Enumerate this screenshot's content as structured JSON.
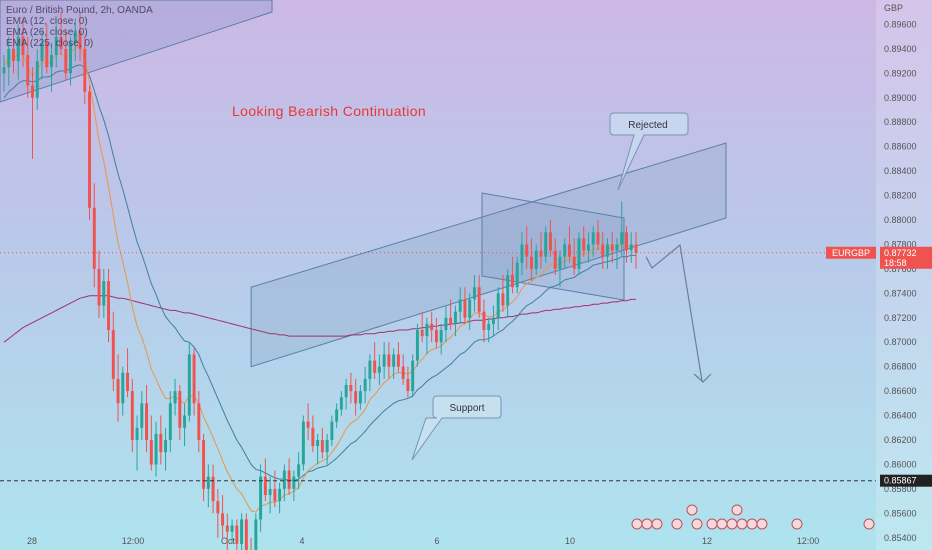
{
  "legend": {
    "title": "Euro / British Pound, 2h, OANDA",
    "lines": [
      "EMA (12, close, 0)",
      "EMA (26, close, 0)",
      "EMA (225, close, 0)"
    ]
  },
  "annotations": {
    "headline": "Looking Bearish Continuation",
    "rejected": "Rejected",
    "support": "Support"
  },
  "price_tag": {
    "symbol": "EURGBP",
    "price": "0.87732",
    "countdown": "18:58",
    "support_price": "0.85867"
  },
  "colors": {
    "up": "#26a69a",
    "down": "#ef5350",
    "headline": "#e53935",
    "channel": "#5b7fa6"
  },
  "chart_data": {
    "type": "candlestick",
    "currency": "GBP",
    "y_ticks": [
      "0.89600",
      "0.89400",
      "0.89200",
      "0.89000",
      "0.88800",
      "0.88600",
      "0.88400",
      "0.88200",
      "0.88000",
      "0.87800",
      "0.87600",
      "0.87400",
      "0.87200",
      "0.87000",
      "0.86800",
      "0.86600",
      "0.86400",
      "0.86200",
      "0.86000",
      "0.85800",
      "0.85600",
      "0.85400"
    ],
    "x_ticks": [
      "28",
      "12:00",
      "Oct",
      "4",
      "6",
      "10",
      "12",
      "12:00"
    ],
    "ylim": [
      0.853,
      0.898
    ],
    "last_price": 0.87732,
    "support_level": 0.85867,
    "candles": [
      [
        0.892,
        0.8935,
        0.8905,
        0.8925
      ],
      [
        0.8925,
        0.895,
        0.891,
        0.894
      ],
      [
        0.894,
        0.8955,
        0.892,
        0.893
      ],
      [
        0.893,
        0.896,
        0.8915,
        0.895
      ],
      [
        0.895,
        0.8965,
        0.8925,
        0.8935
      ],
      [
        0.8935,
        0.895,
        0.89,
        0.891
      ],
      [
        0.891,
        0.8925,
        0.885,
        0.89
      ],
      [
        0.89,
        0.894,
        0.889,
        0.893
      ],
      [
        0.893,
        0.8955,
        0.8915,
        0.8945
      ],
      [
        0.8945,
        0.896,
        0.892,
        0.8925
      ],
      [
        0.8925,
        0.8945,
        0.8905,
        0.8935
      ],
      [
        0.8935,
        0.896,
        0.8925,
        0.895
      ],
      [
        0.895,
        0.897,
        0.8935,
        0.894
      ],
      [
        0.894,
        0.8955,
        0.8915,
        0.892
      ],
      [
        0.892,
        0.895,
        0.891,
        0.8945
      ],
      [
        0.8945,
        0.8965,
        0.893,
        0.8955
      ],
      [
        0.8955,
        0.897,
        0.893,
        0.894
      ],
      [
        0.894,
        0.895,
        0.8895,
        0.8905
      ],
      [
        0.8905,
        0.891,
        0.88,
        0.881
      ],
      [
        0.881,
        0.883,
        0.8745,
        0.876
      ],
      [
        0.876,
        0.8775,
        0.872,
        0.873
      ],
      [
        0.873,
        0.876,
        0.872,
        0.875
      ],
      [
        0.875,
        0.876,
        0.87,
        0.871
      ],
      [
        0.871,
        0.8725,
        0.866,
        0.867
      ],
      [
        0.867,
        0.869,
        0.8635,
        0.865
      ],
      [
        0.865,
        0.868,
        0.864,
        0.8675
      ],
      [
        0.8675,
        0.8695,
        0.8655,
        0.866
      ],
      [
        0.866,
        0.867,
        0.861,
        0.862
      ],
      [
        0.862,
        0.864,
        0.8595,
        0.863
      ],
      [
        0.863,
        0.866,
        0.862,
        0.865
      ],
      [
        0.865,
        0.8665,
        0.861,
        0.862
      ],
      [
        0.862,
        0.864,
        0.8595,
        0.86
      ],
      [
        0.86,
        0.8635,
        0.859,
        0.8625
      ],
      [
        0.8625,
        0.864,
        0.86,
        0.861
      ],
      [
        0.861,
        0.863,
        0.8595,
        0.862
      ],
      [
        0.862,
        0.866,
        0.861,
        0.865
      ],
      [
        0.865,
        0.867,
        0.864,
        0.866
      ],
      [
        0.866,
        0.8665,
        0.862,
        0.863
      ],
      [
        0.863,
        0.865,
        0.8615,
        0.864
      ],
      [
        0.864,
        0.87,
        0.8635,
        0.869
      ],
      [
        0.869,
        0.8695,
        0.864,
        0.865
      ],
      [
        0.865,
        0.866,
        0.861,
        0.862
      ],
      [
        0.862,
        0.8625,
        0.857,
        0.858
      ],
      [
        0.858,
        0.86,
        0.8565,
        0.859
      ],
      [
        0.859,
        0.86,
        0.856,
        0.857
      ],
      [
        0.857,
        0.858,
        0.854,
        0.856
      ],
      [
        0.856,
        0.8575,
        0.854,
        0.855
      ],
      [
        0.855,
        0.856,
        0.853,
        0.8545
      ],
      [
        0.8545,
        0.8555,
        0.8535,
        0.855
      ],
      [
        0.855,
        0.8555,
        0.8525,
        0.8535
      ],
      [
        0.8535,
        0.856,
        0.853,
        0.8555
      ],
      [
        0.8555,
        0.856,
        0.852,
        0.853
      ],
      [
        0.853,
        0.854,
        0.8515,
        0.8525
      ],
      [
        0.8525,
        0.856,
        0.8515,
        0.8555
      ],
      [
        0.8555,
        0.86,
        0.8545,
        0.859
      ],
      [
        0.859,
        0.8605,
        0.857,
        0.8575
      ],
      [
        0.8575,
        0.859,
        0.856,
        0.858
      ],
      [
        0.858,
        0.8595,
        0.8565,
        0.857
      ],
      [
        0.857,
        0.8585,
        0.856,
        0.858
      ],
      [
        0.858,
        0.86,
        0.857,
        0.8595
      ],
      [
        0.8595,
        0.8605,
        0.8575,
        0.858
      ],
      [
        0.858,
        0.8595,
        0.857,
        0.859
      ],
      [
        0.859,
        0.861,
        0.858,
        0.86
      ],
      [
        0.86,
        0.864,
        0.8595,
        0.8635
      ],
      [
        0.8635,
        0.865,
        0.862,
        0.863
      ],
      [
        0.863,
        0.864,
        0.861,
        0.8615
      ],
      [
        0.8615,
        0.8625,
        0.86,
        0.862
      ],
      [
        0.862,
        0.863,
        0.8605,
        0.861
      ],
      [
        0.861,
        0.8625,
        0.86,
        0.862
      ],
      [
        0.862,
        0.864,
        0.8615,
        0.8635
      ],
      [
        0.8635,
        0.865,
        0.863,
        0.8645
      ],
      [
        0.8645,
        0.866,
        0.864,
        0.8655
      ],
      [
        0.8655,
        0.867,
        0.8645,
        0.8665
      ],
      [
        0.8665,
        0.8675,
        0.865,
        0.866
      ],
      [
        0.866,
        0.867,
        0.864,
        0.865
      ],
      [
        0.865,
        0.8665,
        0.8645,
        0.866
      ],
      [
        0.866,
        0.868,
        0.865,
        0.867
      ],
      [
        0.867,
        0.869,
        0.866,
        0.8685
      ],
      [
        0.8685,
        0.87,
        0.867,
        0.8675
      ],
      [
        0.8675,
        0.869,
        0.8665,
        0.868
      ],
      [
        0.868,
        0.87,
        0.867,
        0.869
      ],
      [
        0.869,
        0.87,
        0.867,
        0.868
      ],
      [
        0.868,
        0.8695,
        0.867,
        0.869
      ],
      [
        0.869,
        0.87,
        0.8675,
        0.868
      ],
      [
        0.868,
        0.869,
        0.8665,
        0.867
      ],
      [
        0.867,
        0.868,
        0.8655,
        0.866
      ],
      [
        0.866,
        0.869,
        0.8655,
        0.8685
      ],
      [
        0.8685,
        0.8715,
        0.868,
        0.871
      ],
      [
        0.871,
        0.8725,
        0.87,
        0.8705
      ],
      [
        0.8705,
        0.872,
        0.869,
        0.8715
      ],
      [
        0.8715,
        0.8725,
        0.87,
        0.871
      ],
      [
        0.871,
        0.872,
        0.8695,
        0.87
      ],
      [
        0.87,
        0.8715,
        0.869,
        0.871
      ],
      [
        0.871,
        0.873,
        0.87,
        0.872
      ],
      [
        0.872,
        0.8735,
        0.871,
        0.8715
      ],
      [
        0.8715,
        0.873,
        0.8705,
        0.8725
      ],
      [
        0.8725,
        0.8745,
        0.8715,
        0.8735
      ],
      [
        0.8735,
        0.8745,
        0.8715,
        0.872
      ],
      [
        0.872,
        0.874,
        0.871,
        0.8735
      ],
      [
        0.8735,
        0.8755,
        0.8725,
        0.8745
      ],
      [
        0.8745,
        0.8755,
        0.872,
        0.8725
      ],
      [
        0.8725,
        0.8735,
        0.87,
        0.871
      ],
      [
        0.871,
        0.872,
        0.87,
        0.8715
      ],
      [
        0.8715,
        0.873,
        0.8705,
        0.872
      ],
      [
        0.872,
        0.8745,
        0.871,
        0.874
      ],
      [
        0.874,
        0.8755,
        0.8725,
        0.873
      ],
      [
        0.873,
        0.876,
        0.872,
        0.8755
      ],
      [
        0.8755,
        0.877,
        0.874,
        0.8745
      ],
      [
        0.8745,
        0.877,
        0.874,
        0.8765
      ],
      [
        0.8765,
        0.879,
        0.8755,
        0.878
      ],
      [
        0.878,
        0.8795,
        0.876,
        0.877
      ],
      [
        0.877,
        0.8785,
        0.875,
        0.876
      ],
      [
        0.876,
        0.878,
        0.8755,
        0.8775
      ],
      [
        0.8775,
        0.879,
        0.876,
        0.877
      ],
      [
        0.877,
        0.8795,
        0.8765,
        0.879
      ],
      [
        0.879,
        0.88,
        0.877,
        0.8775
      ],
      [
        0.8775,
        0.8785,
        0.8755,
        0.876
      ],
      [
        0.876,
        0.8775,
        0.8745,
        0.877
      ],
      [
        0.877,
        0.8785,
        0.876,
        0.878
      ],
      [
        0.878,
        0.8795,
        0.8765,
        0.877
      ],
      [
        0.877,
        0.8785,
        0.8755,
        0.876
      ],
      [
        0.876,
        0.879,
        0.8755,
        0.8785
      ],
      [
        0.8785,
        0.8795,
        0.877,
        0.8775
      ],
      [
        0.8775,
        0.879,
        0.8765,
        0.878
      ],
      [
        0.878,
        0.8795,
        0.877,
        0.879
      ],
      [
        0.879,
        0.88,
        0.8775,
        0.878
      ],
      [
        0.878,
        0.879,
        0.876,
        0.877
      ],
      [
        0.877,
        0.8785,
        0.876,
        0.878
      ],
      [
        0.878,
        0.879,
        0.8765,
        0.8775
      ],
      [
        0.8775,
        0.8785,
        0.876,
        0.878
      ],
      [
        0.878,
        0.8815,
        0.877,
        0.879
      ],
      [
        0.879,
        0.8795,
        0.8765,
        0.8775
      ],
      [
        0.8775,
        0.879,
        0.8765,
        0.878
      ],
      [
        0.878,
        0.879,
        0.876,
        0.8773
      ]
    ],
    "ema_12": [
      0.8925,
      0.8935,
      0.893,
      0.8938,
      0.8935,
      0.8925,
      0.8918,
      0.8922,
      0.893,
      0.8928,
      0.893,
      0.8936,
      0.8936,
      0.8932,
      0.8936,
      0.8942,
      0.8941,
      0.8932,
      0.8913,
      0.8889,
      0.8865,
      0.8848,
      0.8827,
      0.8804,
      0.8782,
      0.8766,
      0.8749,
      0.8729,
      0.8713,
      0.8704,
      0.8692,
      0.8678,
      0.867,
      0.8661,
      0.8654,
      0.8654,
      0.8656,
      0.8652,
      0.865,
      0.8656,
      0.8656,
      0.865,
      0.8639,
      0.8631,
      0.8622,
      0.8613,
      0.8603,
      0.8594,
      0.8587,
      0.858,
      0.8576,
      0.8569,
      0.8562,
      0.8561,
      0.8566,
      0.8567,
      0.8569,
      0.8569,
      0.8571,
      0.8575,
      0.8576,
      0.8578,
      0.8581,
      0.8589,
      0.8595,
      0.8598,
      0.8601,
      0.8603,
      0.8605,
      0.861,
      0.8615,
      0.8622,
      0.8629,
      0.8634,
      0.8636,
      0.864,
      0.8645,
      0.8653,
      0.8657,
      0.8662,
      0.8667,
      0.867,
      0.8674,
      0.8675,
      0.8675,
      0.8674,
      0.8676,
      0.8682,
      0.8686,
      0.8691,
      0.8694,
      0.8695,
      0.8697,
      0.8701,
      0.8704,
      0.8708,
      0.8713,
      0.8715,
      0.8719,
      0.8724,
      0.8724,
      0.8722,
      0.8721,
      0.8721,
      0.8725,
      0.8726,
      0.873,
      0.8733,
      0.8737,
      0.8744,
      0.8748,
      0.875,
      0.8753,
      0.8755,
      0.876,
      0.8763,
      0.8763,
      0.8764,
      0.8767,
      0.8768,
      0.8768,
      0.8771,
      0.8772,
      0.8773,
      0.8776,
      0.8777,
      0.8777,
      0.8777,
      0.8777,
      0.8778,
      0.878,
      0.8779,
      0.8779,
      0.8778
    ],
    "ema_26": [
      0.89,
      0.8905,
      0.8908,
      0.8912,
      0.8914,
      0.8914,
      0.8913,
      0.8914,
      0.8917,
      0.8917,
      0.8918,
      0.8921,
      0.8922,
      0.8922,
      0.8924,
      0.8926,
      0.8927,
      0.8925,
      0.8918,
      0.8906,
      0.8893,
      0.8882,
      0.8869,
      0.8853,
      0.8838,
      0.8825,
      0.8811,
      0.8796,
      0.8782,
      0.8772,
      0.876,
      0.8748,
      0.8739,
      0.8729,
      0.8721,
      0.8716,
      0.8712,
      0.8706,
      0.8701,
      0.87,
      0.8696,
      0.869,
      0.868,
      0.8672,
      0.8663,
      0.8654,
      0.8645,
      0.8636,
      0.8628,
      0.862,
      0.8614,
      0.8607,
      0.86,
      0.8596,
      0.8595,
      0.8593,
      0.8591,
      0.8589,
      0.8588,
      0.8588,
      0.8587,
      0.8587,
      0.8588,
      0.8591,
      0.8594,
      0.8595,
      0.8597,
      0.8598,
      0.8599,
      0.8602,
      0.8605,
      0.8609,
      0.8613,
      0.8617,
      0.8619,
      0.8623,
      0.8627,
      0.8632,
      0.8636,
      0.864,
      0.8644,
      0.8647,
      0.865,
      0.8652,
      0.8653,
      0.8654,
      0.8656,
      0.8661,
      0.8664,
      0.8668,
      0.8671,
      0.8673,
      0.8676,
      0.8679,
      0.8682,
      0.8686,
      0.869,
      0.8692,
      0.8696,
      0.87,
      0.8702,
      0.8702,
      0.8703,
      0.8705,
      0.8708,
      0.871,
      0.8714,
      0.8717,
      0.8721,
      0.8726,
      0.873,
      0.8732,
      0.8735,
      0.8738,
      0.8742,
      0.8745,
      0.8746,
      0.8748,
      0.8751,
      0.8752,
      0.8753,
      0.8756,
      0.8758,
      0.876,
      0.8763,
      0.8764,
      0.8765,
      0.8766,
      0.8767,
      0.8768,
      0.877,
      0.877,
      0.8771,
      0.8771
    ],
    "ema_225": [
      0.87,
      0.8703,
      0.8706,
      0.8709,
      0.8712,
      0.8714,
      0.8716,
      0.8718,
      0.872,
      0.8722,
      0.8724,
      0.8726,
      0.8728,
      0.873,
      0.8732,
      0.8734,
      0.8736,
      0.8737,
      0.8738,
      0.8738,
      0.8738,
      0.8738,
      0.8738,
      0.8737,
      0.8736,
      0.8736,
      0.8735,
      0.8734,
      0.8733,
      0.8732,
      0.8731,
      0.873,
      0.8729,
      0.8728,
      0.8727,
      0.8726,
      0.8726,
      0.8725,
      0.8724,
      0.8724,
      0.8723,
      0.8722,
      0.8721,
      0.872,
      0.8719,
      0.8718,
      0.8717,
      0.8716,
      0.8715,
      0.8714,
      0.8713,
      0.8712,
      0.8711,
      0.871,
      0.8709,
      0.8708,
      0.8707,
      0.8707,
      0.8706,
      0.8706,
      0.8705,
      0.8705,
      0.8705,
      0.8705,
      0.8705,
      0.8705,
      0.8705,
      0.8705,
      0.8705,
      0.8705,
      0.8705,
      0.8705,
      0.8705,
      0.8706,
      0.8706,
      0.8706,
      0.8707,
      0.8707,
      0.8707,
      0.8708,
      0.8708,
      0.8709,
      0.8709,
      0.871,
      0.871,
      0.871,
      0.8711,
      0.8711,
      0.8712,
      0.8712,
      0.8713,
      0.8713,
      0.8714,
      0.8714,
      0.8715,
      0.8715,
      0.8716,
      0.8716,
      0.8717,
      0.8718,
      0.8718,
      0.8718,
      0.8719,
      0.8719,
      0.872,
      0.872,
      0.8721,
      0.8721,
      0.8722,
      0.8723,
      0.8723,
      0.8724,
      0.8724,
      0.8725,
      0.8726,
      0.8726,
      0.8727,
      0.8727,
      0.8728,
      0.8728,
      0.8729,
      0.8729,
      0.873,
      0.873,
      0.8731,
      0.8731,
      0.8732,
      0.8732,
      0.8733,
      0.8733,
      0.8734,
      0.8734,
      0.8735,
      0.8735
    ]
  }
}
